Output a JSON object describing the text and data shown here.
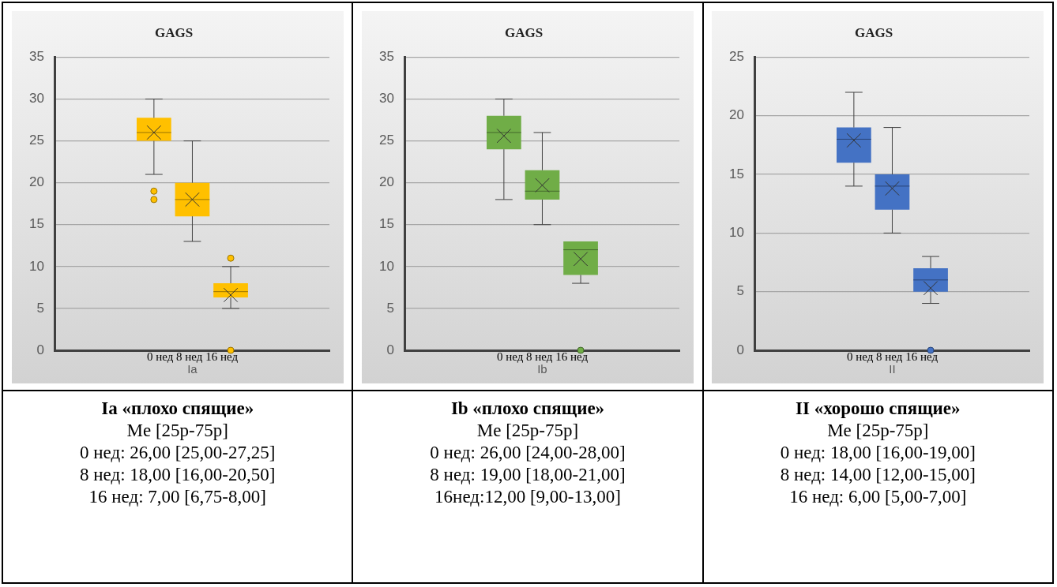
{
  "chart_data": [
    {
      "type": "box",
      "title": "GAGS",
      "xlabel": "Ia",
      "categories": [
        "0 нед 8 нед 16 нед"
      ],
      "ylim": [
        0,
        35
      ],
      "yticks": [
        0,
        5,
        10,
        15,
        20,
        25,
        30,
        35
      ],
      "grid": "y",
      "legend": false,
      "series": [
        {
          "color": "#ffc000",
          "boxes": [
            {
              "low": 21,
              "q1": 25,
              "median": 26,
              "q3": 27.75,
              "high": 30,
              "mean": 26,
              "outliers": [
                19,
                18
              ]
            }
          ]
        },
        {
          "color": "#ffc000",
          "boxes": [
            {
              "low": 13,
              "q1": 16,
              "median": 18,
              "q3": 20,
              "high": 25,
              "mean": 18
            }
          ]
        },
        {
          "color": "#ffc000",
          "boxes": [
            {
              "low": 5,
              "q1": 6.3,
              "median": 7,
              "q3": 8,
              "high": 10,
              "mean": 6.6,
              "outliers": [
                11,
                0
              ]
            }
          ]
        }
      ],
      "annotations": [
        "Ia «плохо спящие»",
        "Me [25p-75p]",
        "0 нед: 26,00 [25,00-27,25]",
        "8 нед: 18,00 [16,00-20,50]",
        "16 нед: 7,00 [6,75-8,00]"
      ]
    },
    {
      "type": "box",
      "title": "GAGS",
      "xlabel": "Ib",
      "categories": [
        "0 нед 8 нед 16 нед"
      ],
      "ylim": [
        0,
        35
      ],
      "yticks": [
        0,
        5,
        10,
        15,
        20,
        25,
        30,
        35
      ],
      "grid": "y",
      "legend": false,
      "series": [
        {
          "color": "#70ad47",
          "boxes": [
            {
              "low": 18,
              "q1": 24,
              "median": 26,
              "q3": 28,
              "high": 30,
              "mean": 25.6
            }
          ]
        },
        {
          "color": "#70ad47",
          "boxes": [
            {
              "low": 15,
              "q1": 18,
              "median": 19,
              "q3": 21.5,
              "high": 26,
              "mean": 19.7
            }
          ]
        },
        {
          "color": "#70ad47",
          "boxes": [
            {
              "low": 8,
              "q1": 9,
              "median": 12,
              "q3": 13,
              "high": 13,
              "mean": 10.9,
              "outliers": [
                0
              ]
            }
          ]
        }
      ],
      "annotations": [
        "Ib «плохо спящие»",
        "Me [25p-75p]",
        "0 нед: 26,00 [24,00-28,00]",
        "8 нед: 19,00 [18,00-21,00]",
        "16нед:12,00 [9,00-13,00]"
      ]
    },
    {
      "type": "box",
      "title": "GAGS",
      "xlabel": "II",
      "categories": [
        "0 нед 8 нед 16 нед"
      ],
      "ylim": [
        0,
        25
      ],
      "yticks": [
        0,
        5,
        10,
        15,
        20,
        25
      ],
      "grid": "y",
      "legend": false,
      "series": [
        {
          "color": "#4472c4",
          "boxes": [
            {
              "low": 14,
              "q1": 16,
              "median": 18,
              "q3": 19,
              "high": 22,
              "mean": 17.9
            }
          ]
        },
        {
          "color": "#4472c4",
          "boxes": [
            {
              "low": 10,
              "q1": 12,
              "median": 14,
              "q3": 15,
              "high": 19,
              "mean": 13.8
            }
          ]
        },
        {
          "color": "#4472c4",
          "boxes": [
            {
              "low": 4,
              "q1": 5,
              "median": 6,
              "q3": 7,
              "high": 8,
              "mean": 5.3,
              "outliers": [
                0
              ]
            }
          ]
        }
      ],
      "annotations": [
        "II «хорошо спящие»",
        "Me [25p-75p]",
        "0 нед: 18,00 [16,00-19,00]",
        "8 нед: 14,00 [12,00-15,00]",
        "16 нед: 6,00 [5,00-7,00]"
      ]
    }
  ]
}
